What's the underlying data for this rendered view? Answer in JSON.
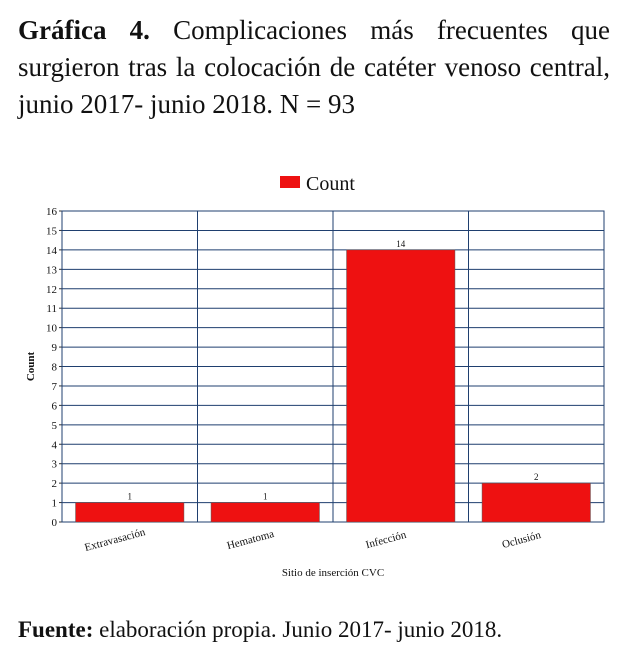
{
  "caption": {
    "label": "Gráfica 4.",
    "text": "Complicaciones más frecuentes que surgieron tras la colocación de catéter venoso central, junio 2017- junio 2018. N = 93"
  },
  "chart_data": {
    "type": "bar",
    "legend": "Count",
    "y_label": "Count",
    "x_label": "Sitio de inserción CVC",
    "categories": [
      "Extravasación",
      "Hematoma",
      "Infección",
      "Oclusión"
    ],
    "values": [
      1,
      1,
      14,
      2
    ],
    "color": "#ee1111",
    "ylim": [
      0,
      16
    ],
    "yticks": [
      0,
      1,
      2,
      3,
      4,
      5,
      6,
      7,
      8,
      9,
      10,
      11,
      12,
      13,
      14,
      15,
      16
    ],
    "grid": true
  },
  "footer": {
    "label": "Fuente:",
    "text": "elaboración propia. Junio 2017- junio 2018."
  }
}
